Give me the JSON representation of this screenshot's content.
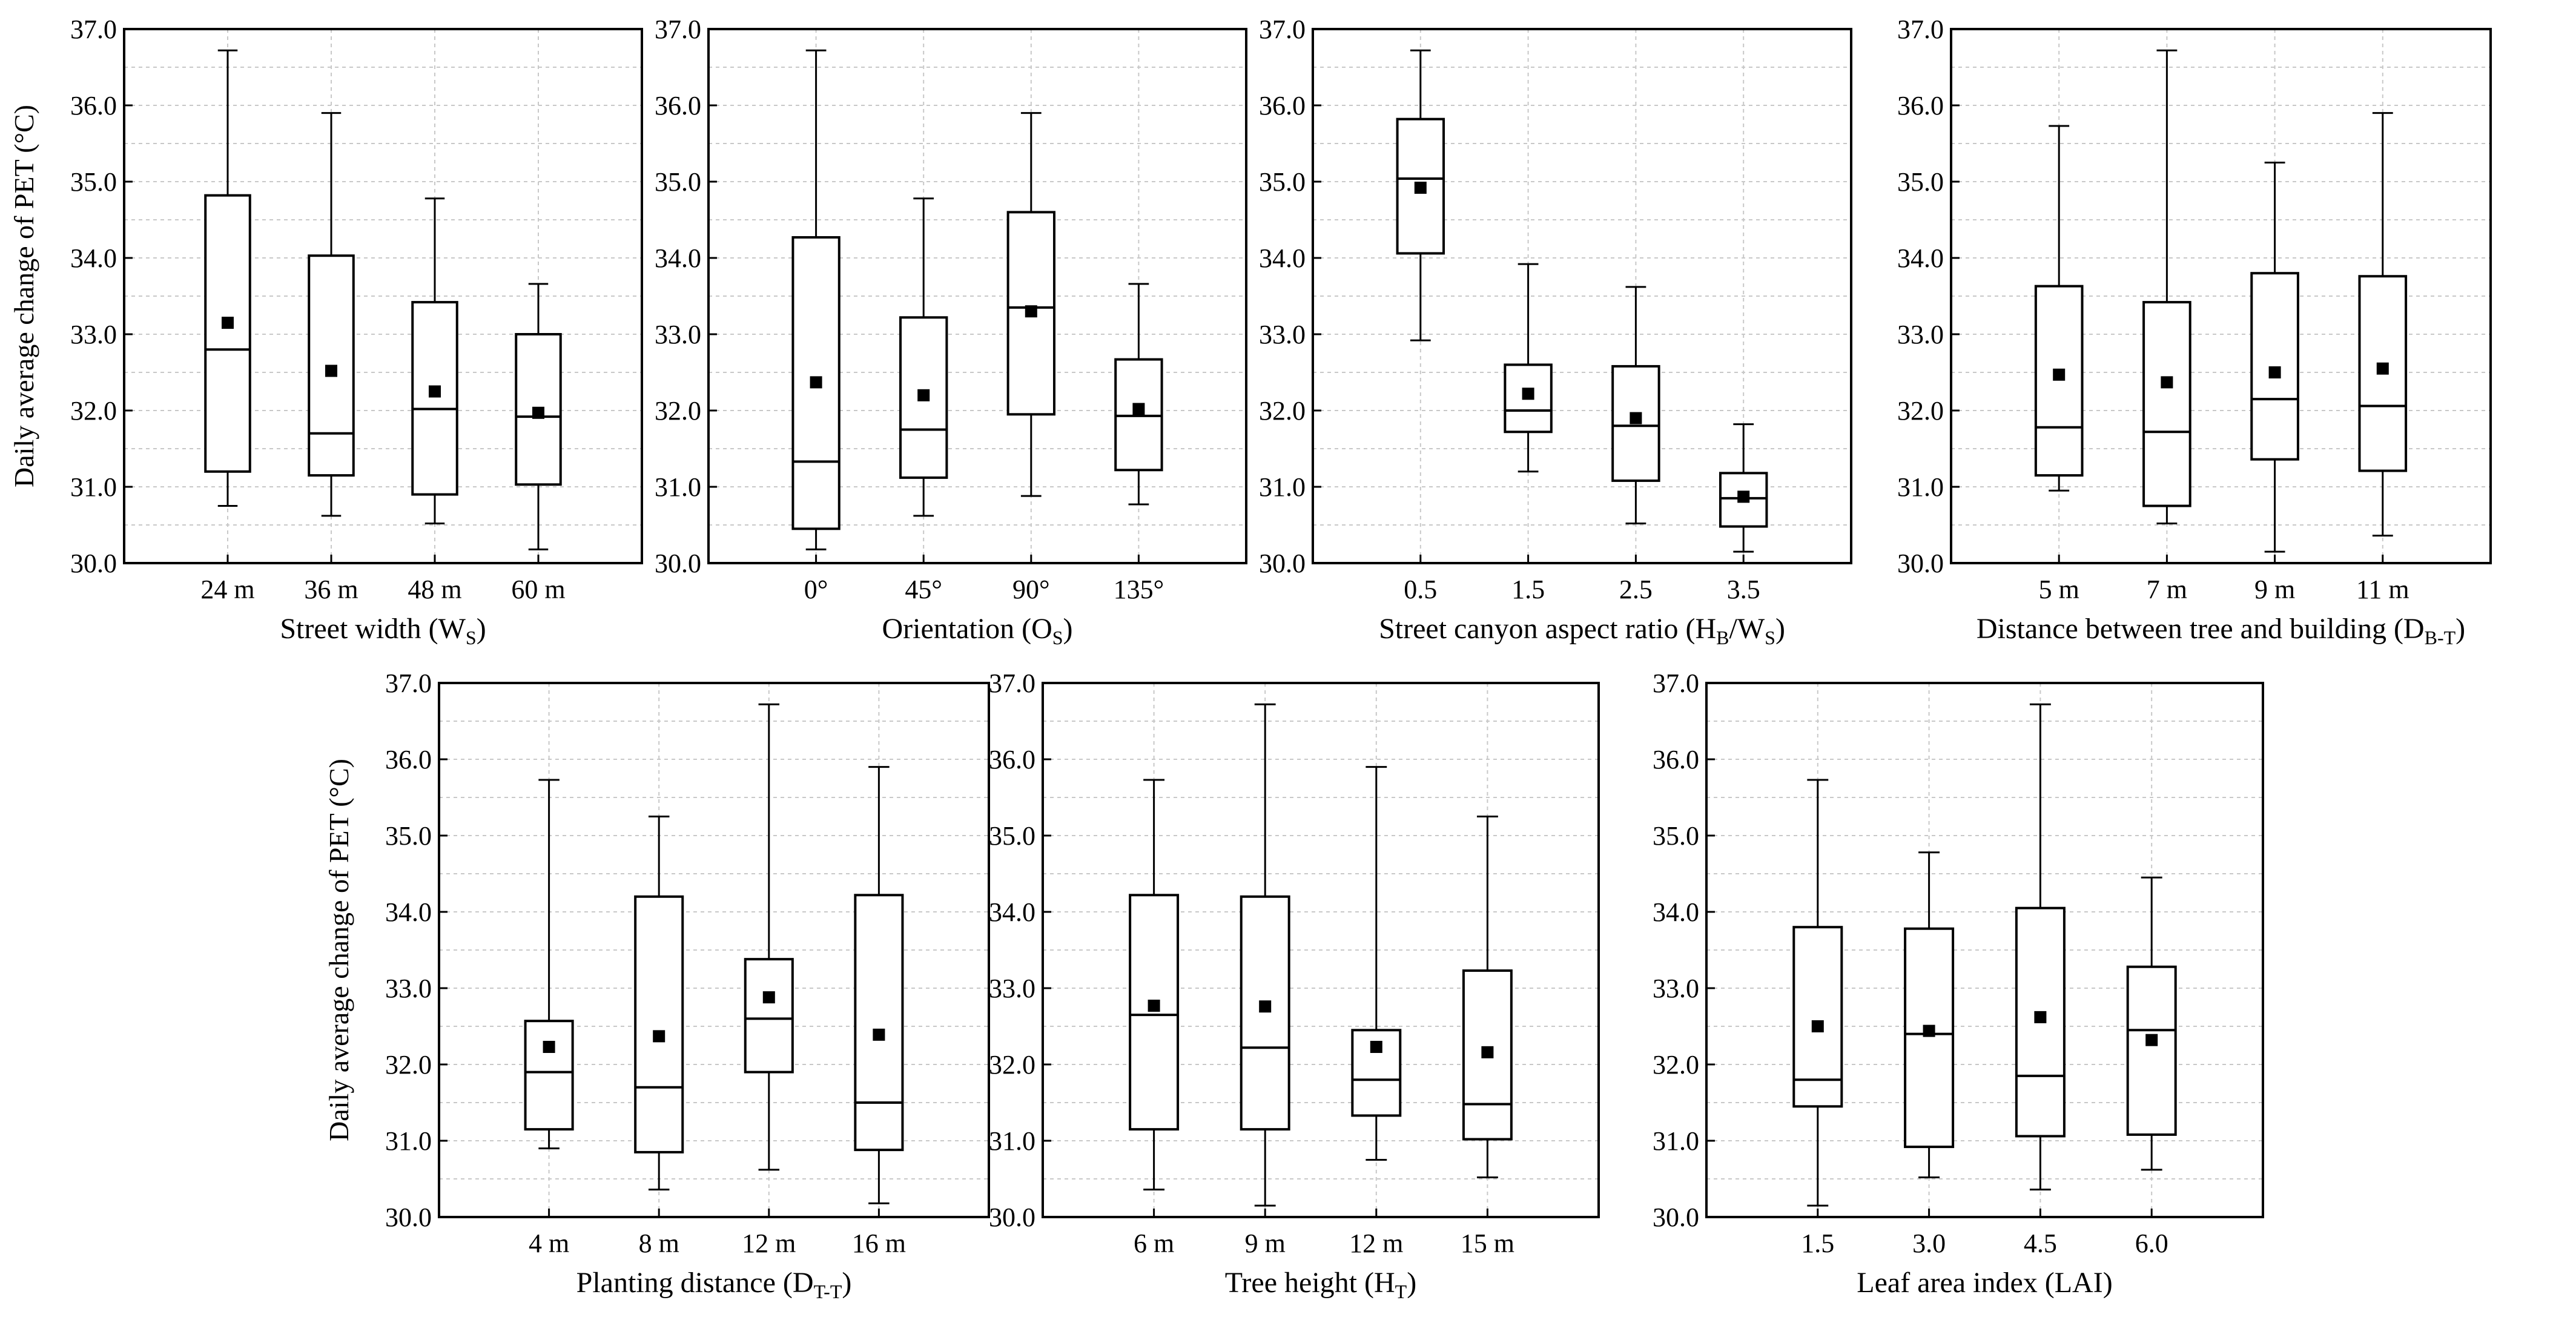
{
  "figure": {
    "ylabel": "Daily average change of PET (°C)",
    "unit_symbol": "°C"
  },
  "style": {
    "frame_color": "#000000",
    "grid_color": "#c8c8c8",
    "box_stroke": "#000000",
    "mean_marker_color": "#000000"
  },
  "chart_data": [
    {
      "type": "box",
      "id": "street-width",
      "xlabel": "Street width (W",
      "xlabel_sub": "S",
      "xlabel_end": ")",
      "ylabel": "Daily average change of PET (°C)",
      "ylim": [
        30.0,
        37.0
      ],
      "yticks": [
        "30.0",
        "31.0",
        "32.0",
        "33.0",
        "34.0",
        "35.0",
        "36.0",
        "37.0"
      ],
      "categories": [
        "24 m",
        "36 m",
        "48 m",
        "60 m"
      ],
      "boxes": [
        {
          "min": 30.75,
          "q1": 31.2,
          "median": 32.8,
          "q3": 34.82,
          "max": 36.72,
          "mean": 33.15
        },
        {
          "min": 30.62,
          "q1": 31.15,
          "median": 31.7,
          "q3": 34.03,
          "max": 35.9,
          "mean": 32.52
        },
        {
          "min": 30.52,
          "q1": 30.9,
          "median": 32.02,
          "q3": 33.42,
          "max": 34.78,
          "mean": 32.25
        },
        {
          "min": 30.18,
          "q1": 31.03,
          "median": 31.92,
          "q3": 33.0,
          "max": 33.66,
          "mean": 31.97
        }
      ]
    },
    {
      "type": "box",
      "id": "orientation",
      "xlabel": "Orientation (O",
      "xlabel_sub": "S",
      "xlabel_end": ")",
      "ylabel": "",
      "ylim": [
        30.0,
        37.0
      ],
      "yticks": [
        "30.0",
        "31.0",
        "32.0",
        "33.0",
        "34.0",
        "35.0",
        "36.0",
        "37.0"
      ],
      "categories": [
        "0°",
        "45°",
        "90°",
        "135°"
      ],
      "boxes": [
        {
          "min": 30.18,
          "q1": 30.45,
          "median": 31.33,
          "q3": 34.27,
          "max": 36.72,
          "mean": 32.37
        },
        {
          "min": 30.62,
          "q1": 31.12,
          "median": 31.75,
          "q3": 33.22,
          "max": 34.78,
          "mean": 32.2
        },
        {
          "min": 30.88,
          "q1": 31.95,
          "median": 33.35,
          "q3": 34.6,
          "max": 35.9,
          "mean": 33.3
        },
        {
          "min": 30.77,
          "q1": 31.22,
          "median": 31.93,
          "q3": 32.67,
          "max": 33.66,
          "mean": 32.02
        }
      ]
    },
    {
      "type": "box",
      "id": "aspect-ratio",
      "xlabel": "Street canyon aspect ratio (H",
      "xlabel_sub": "B",
      "xlabel_mid": "/W",
      "xlabel_sub2": "S",
      "xlabel_end": ")",
      "ylabel": "",
      "ylim": [
        30.0,
        37.0
      ],
      "yticks": [
        "30.0",
        "31.0",
        "32.0",
        "33.0",
        "34.0",
        "35.0",
        "36.0",
        "37.0"
      ],
      "categories": [
        "0.5",
        "1.5",
        "2.5",
        "3.5"
      ],
      "boxes": [
        {
          "min": 32.92,
          "q1": 34.06,
          "median": 35.04,
          "q3": 35.82,
          "max": 36.72,
          "mean": 34.92
        },
        {
          "min": 31.2,
          "q1": 31.72,
          "median": 32.0,
          "q3": 32.6,
          "max": 33.92,
          "mean": 32.22
        },
        {
          "min": 30.52,
          "q1": 31.08,
          "median": 31.8,
          "q3": 32.58,
          "max": 33.62,
          "mean": 31.9
        },
        {
          "min": 30.15,
          "q1": 30.48,
          "median": 30.85,
          "q3": 31.18,
          "max": 31.82,
          "mean": 30.87
        }
      ]
    },
    {
      "type": "box",
      "id": "tree-building-distance",
      "xlabel": "Distance between tree and building (D",
      "xlabel_sub": "B-T",
      "xlabel_end": ")",
      "ylabel": "",
      "ylim": [
        30.0,
        37.0
      ],
      "yticks": [
        "30.0",
        "31.0",
        "32.0",
        "33.0",
        "34.0",
        "35.0",
        "36.0",
        "37.0"
      ],
      "categories": [
        "5 m",
        "7 m",
        "9 m",
        "11 m"
      ],
      "boxes": [
        {
          "min": 30.95,
          "q1": 31.15,
          "median": 31.78,
          "q3": 33.63,
          "max": 35.73,
          "mean": 32.47
        },
        {
          "min": 30.52,
          "q1": 30.75,
          "median": 31.72,
          "q3": 33.42,
          "max": 36.72,
          "mean": 32.37
        },
        {
          "min": 30.15,
          "q1": 31.36,
          "median": 32.15,
          "q3": 33.8,
          "max": 35.25,
          "mean": 32.5
        },
        {
          "min": 30.36,
          "q1": 31.21,
          "median": 32.06,
          "q3": 33.76,
          "max": 35.9,
          "mean": 32.55
        }
      ]
    },
    {
      "type": "box",
      "id": "planting-distance",
      "xlabel": "Planting distance (D",
      "xlabel_sub": "T-T",
      "xlabel_end": ")",
      "ylabel": "Daily average change of PET (°C)",
      "ylim": [
        30.0,
        37.0
      ],
      "yticks": [
        "30.0",
        "31.0",
        "32.0",
        "33.0",
        "34.0",
        "35.0",
        "36.0",
        "37.0"
      ],
      "categories": [
        "4 m",
        "8 m",
        "12 m",
        "16 m"
      ],
      "boxes": [
        {
          "min": 30.9,
          "q1": 31.15,
          "median": 31.9,
          "q3": 32.57,
          "max": 35.73,
          "mean": 32.23
        },
        {
          "min": 30.36,
          "q1": 30.85,
          "median": 31.7,
          "q3": 34.2,
          "max": 35.25,
          "mean": 32.37
        },
        {
          "min": 30.62,
          "q1": 31.9,
          "median": 32.6,
          "q3": 33.38,
          "max": 36.72,
          "mean": 32.88
        },
        {
          "min": 30.18,
          "q1": 30.88,
          "median": 31.5,
          "q3": 34.22,
          "max": 35.9,
          "mean": 32.39
        }
      ]
    },
    {
      "type": "box",
      "id": "tree-height",
      "xlabel": "Tree height (H",
      "xlabel_sub": "T",
      "xlabel_end": ")",
      "ylabel": "",
      "ylim": [
        30.0,
        37.0
      ],
      "yticks": [
        "30.0",
        "31.0",
        "32.0",
        "33.0",
        "34.0",
        "35.0",
        "36.0",
        "37.0"
      ],
      "categories": [
        "6 m",
        "9 m",
        "12 m",
        "15 m"
      ],
      "boxes": [
        {
          "min": 30.36,
          "q1": 31.15,
          "median": 32.65,
          "q3": 34.22,
          "max": 35.73,
          "mean": 32.77
        },
        {
          "min": 30.15,
          "q1": 31.15,
          "median": 32.22,
          "q3": 34.2,
          "max": 36.72,
          "mean": 32.76
        },
        {
          "min": 30.75,
          "q1": 31.33,
          "median": 31.8,
          "q3": 32.45,
          "max": 35.9,
          "mean": 32.23
        },
        {
          "min": 30.52,
          "q1": 31.02,
          "median": 31.48,
          "q3": 33.23,
          "max": 35.25,
          "mean": 32.16
        }
      ]
    },
    {
      "type": "box",
      "id": "leaf-area-index",
      "xlabel": "Leaf area index (LAI)",
      "xlabel_sub": "",
      "xlabel_end": "",
      "ylabel": "",
      "ylim": [
        30.0,
        37.0
      ],
      "yticks": [
        "30.0",
        "31.0",
        "32.0",
        "33.0",
        "34.0",
        "35.0",
        "36.0",
        "37.0"
      ],
      "categories": [
        "1.5",
        "3.0",
        "4.5",
        "6.0"
      ],
      "boxes": [
        {
          "min": 30.15,
          "q1": 31.45,
          "median": 31.8,
          "q3": 33.8,
          "max": 35.73,
          "mean": 32.5
        },
        {
          "min": 30.52,
          "q1": 30.92,
          "median": 32.4,
          "q3": 33.78,
          "max": 34.78,
          "mean": 32.44
        },
        {
          "min": 30.36,
          "q1": 31.06,
          "median": 31.85,
          "q3": 34.05,
          "max": 36.72,
          "mean": 32.62
        },
        {
          "min": 30.62,
          "q1": 31.08,
          "median": 32.45,
          "q3": 33.28,
          "max": 34.45,
          "mean": 32.32
        }
      ]
    }
  ]
}
